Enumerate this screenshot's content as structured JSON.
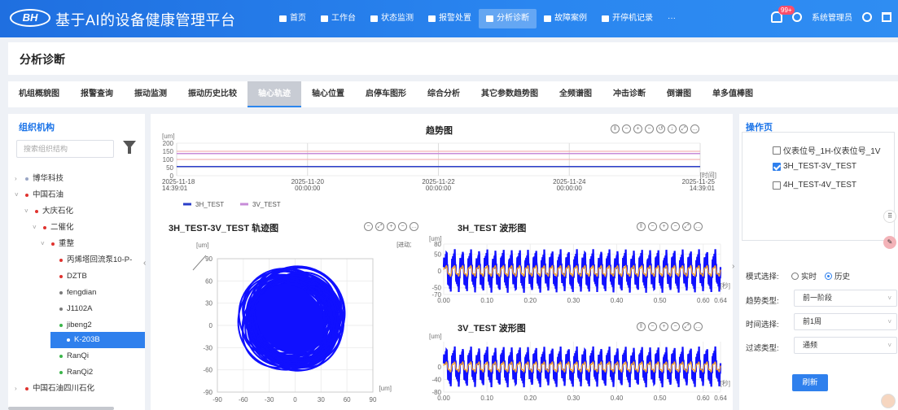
{
  "app": {
    "logo_text": "BH",
    "title": "基于AI的设备健康管理平台"
  },
  "nav": [
    {
      "label": "首页",
      "icon": "home-icon"
    },
    {
      "label": "工作台",
      "icon": "workbench-icon"
    },
    {
      "label": "状态监测",
      "icon": "monitor-icon"
    },
    {
      "label": "报警处置",
      "icon": "alarm-icon"
    },
    {
      "label": "分析诊断",
      "icon": "analysis-icon",
      "active": true
    },
    {
      "label": "故障案例",
      "icon": "case-icon"
    },
    {
      "label": "开停机记录",
      "icon": "record-icon"
    },
    {
      "label": "···",
      "icon": "more-icon"
    }
  ],
  "user": {
    "badge": "99+",
    "name": "系统管理员"
  },
  "page": {
    "title": "分析诊断"
  },
  "tabs": [
    "机组概貌图",
    "报警查询",
    "振动监测",
    "振动历史比较",
    "轴心轨迹",
    "轴心位置",
    "启停车图形",
    "综合分析",
    "其它参数趋势图",
    "全频谱图",
    "冲击诊断",
    "倒谱图",
    "单多值棒图"
  ],
  "active_tab": "轴心轨迹",
  "tree": {
    "title": "组织机构",
    "search_placeholder": "搜索组织结构",
    "nodes": [
      {
        "label": "博华科技",
        "caret": "›",
        "dot": "#9aa6c5"
      },
      {
        "label": "中国石油",
        "caret": "˅",
        "dot": "#e0332f"
      },
      {
        "label": "大庆石化",
        "caret": "˅",
        "dot": "#e0332f"
      },
      {
        "label": "二催化",
        "caret": "˅",
        "dot": "#e0332f"
      },
      {
        "label": "重整",
        "caret": "˅",
        "dot": "#e0332f"
      },
      {
        "label": "丙烯塔回流泵10-P-",
        "caret": "",
        "dot": "#e0332f"
      },
      {
        "label": "DZTB",
        "caret": "",
        "dot": "#e0332f"
      },
      {
        "label": "fengdian",
        "caret": "",
        "dot": "#7a7a7a"
      },
      {
        "label": "J1102A",
        "caret": "",
        "dot": "#7a7a7a"
      },
      {
        "label": "jibeng2",
        "caret": "",
        "dot": "#3bb54a"
      },
      {
        "label": "K-203B",
        "caret": "",
        "dot": "#ffffff",
        "selected": true
      },
      {
        "label": "RanQi",
        "caret": "",
        "dot": "#3bb54a"
      },
      {
        "label": "RanQi2",
        "caret": "",
        "dot": "#3bb54a"
      },
      {
        "label": "中国石油四川石化",
        "caret": "›",
        "dot": "#e0332f"
      }
    ]
  },
  "trend": {
    "title": "趋势图",
    "ylabel": "[um]",
    "xlabel": "[时间]",
    "legend": [
      "3H_TEST",
      "3V_TEST"
    ]
  },
  "orbit": {
    "title": "3H_TEST-3V_TEST 轨迹图",
    "ylabel": "[um]",
    "xlabel": "[um]",
    "note": "[进动方向: 反向]"
  },
  "wave1": {
    "title": "3H_TEST 波形图",
    "ylabel": "[um]",
    "xlabel": "[秒]"
  },
  "wave2": {
    "title": "3V_TEST 波形图",
    "ylabel": "[um]",
    "xlabel": "[秒]"
  },
  "right_panel": {
    "title": "操作页",
    "checkboxes": [
      {
        "label": "仪表位号_1H-仪表位号_1V",
        "checked": false
      },
      {
        "label": "3H_TEST-3V_TEST",
        "checked": true
      },
      {
        "label": "4H_TEST-4V_TEST",
        "checked": false
      }
    ],
    "mode_label": "模式选择:",
    "mode_options": [
      "实时",
      "历史"
    ],
    "mode_selected": "历史",
    "trend_type_label": "趋势类型:",
    "trend_type_value": "前一阶段",
    "time_label": "时间选择:",
    "time_value": "前1周",
    "filter_label": "过滤类型:",
    "filter_value": "通频",
    "refresh_label": "刷新"
  },
  "chart_data": [
    {
      "type": "line",
      "title": "趋势图",
      "ylabel": "[um]",
      "xlabel": "[时间]",
      "ylim": [
        0,
        200
      ],
      "yticks": [
        200,
        150,
        100,
        50,
        0
      ],
      "x": [
        "2025-11-18 14:39:01",
        "2025-11-20 00:00:00",
        "2025-11-22 00:00:00",
        "2025-11-24 00:00:00",
        "2025-11-25 14:39:01"
      ],
      "series": [
        {
          "name": "3H_TEST",
          "color": "#2a3ec8",
          "values": [
            56,
            56,
            56,
            56,
            56
          ]
        },
        {
          "name": "3V_TEST",
          "color": "#c78bd8",
          "values": [
            136,
            136,
            136,
            136,
            136
          ]
        }
      ],
      "extra_lines": [
        {
          "color": "#f2a5a5",
          "values": [
            150,
            150,
            150,
            150,
            150
          ]
        },
        {
          "color": "#f2a5a5",
          "values": [
            100,
            100,
            100,
            100,
            100
          ]
        }
      ]
    },
    {
      "type": "scatter",
      "title": "3H_TEST-3V_TEST 轨迹图",
      "xlim": [
        -90,
        90
      ],
      "ylim": [
        -90,
        90
      ],
      "xticks": [
        -90,
        -60,
        -30,
        0,
        30,
        60,
        90
      ],
      "yticks": [
        90,
        60,
        30,
        0,
        -30,
        -60,
        -90
      ],
      "color": "#1010ff",
      "shape": "dense filled orbit region roughly x -58..48, y -56..75"
    },
    {
      "type": "line",
      "title": "3H_TEST 波形图",
      "xlim": [
        0,
        0.64
      ],
      "ylim": [
        -70,
        80
      ],
      "xticks": [
        "0.00",
        "0.10",
        "0.20",
        "0.30",
        "0.40",
        "0.50",
        "0.60",
        "0.64"
      ],
      "yticks": [
        80,
        50,
        0,
        -50,
        -70
      ],
      "series": [
        {
          "name": "3H_TEST",
          "color": "#1010ff",
          "amplitude": 55,
          "cycles": 34
        },
        {
          "name": "3H_TEST",
          "color": "#f0a030",
          "amplitude": 18,
          "cycles": 34
        }
      ]
    },
    {
      "type": "line",
      "title": "3V_TEST 波形图",
      "xlim": [
        0,
        0.64
      ],
      "ylim": [
        -80,
        80
      ],
      "xticks": [
        "0.00",
        "0.10",
        "0.20",
        "0.30",
        "0.40",
        "0.50",
        "0.60",
        "0.64"
      ],
      "yticks": [
        0,
        -40,
        -80
      ],
      "series": [
        {
          "name": "3V_TEST",
          "color": "#1010ff",
          "amplitude": 55,
          "cycles": 34
        },
        {
          "name": "3V_TEST",
          "color": "#f0a030",
          "amplitude": 18,
          "cycles": 34
        }
      ]
    }
  ]
}
